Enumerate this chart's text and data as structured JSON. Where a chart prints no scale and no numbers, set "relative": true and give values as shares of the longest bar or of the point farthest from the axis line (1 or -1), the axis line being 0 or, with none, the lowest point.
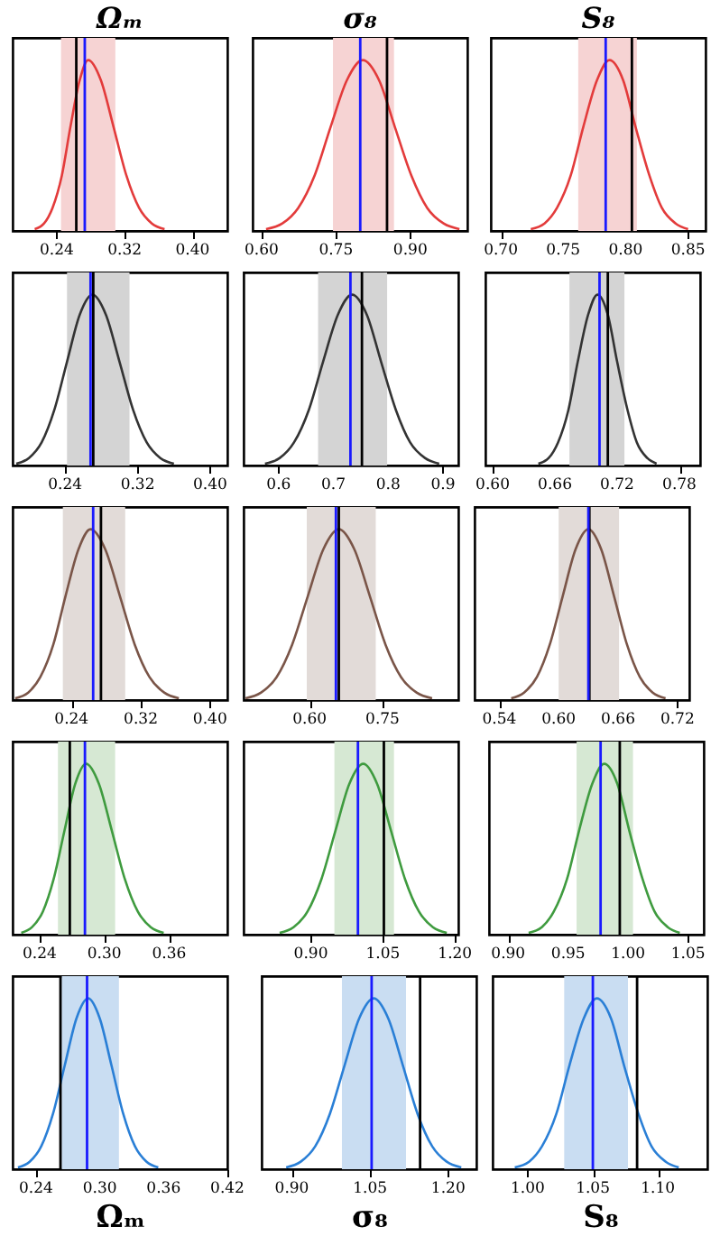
{
  "chart_data": [
    {
      "type": "line",
      "relative": true,
      "tick_labels": "x",
      "title": "Ωₘ",
      "x": [
        0.214,
        0.225,
        0.235,
        0.246,
        0.256,
        0.267,
        0.277,
        0.292,
        0.307,
        0.322,
        0.337,
        0.352,
        0.367
      ],
      "series": [
        {
          "color": "#e33b3b",
          "values": [
            0.011,
            0.044,
            0.135,
            0.325,
            0.607,
            0.882,
            1,
            0.882,
            0.607,
            0.325,
            0.135,
            0.044,
            0.011
          ]
        }
      ],
      "xlim": [
        0.188,
        0.441
      ],
      "xticks": [
        0.24,
        0.32,
        {
          "value": 0.4,
          "label": "0.40"
        }
      ],
      "bands": [
        {
          "axis": "x",
          "from": 0.245,
          "to": 0.309,
          "color": "#f6d3d3"
        }
      ],
      "ref_lines": [
        {
          "axis": "x",
          "value": 0.263,
          "color": "#000000"
        },
        {
          "axis": "x",
          "value": 0.273,
          "color": "#1a1aff"
        }
      ]
    },
    {
      "type": "line",
      "relative": true,
      "tick_labels": "x",
      "title": "σ₈",
      "x": [
        0.609,
        0.642,
        0.674,
        0.707,
        0.739,
        0.772,
        0.804,
        0.837,
        0.869,
        0.902,
        0.934,
        0.967,
        0.999
      ],
      "series": [
        {
          "color": "#e33b3b",
          "values": [
            0.011,
            0.044,
            0.135,
            0.325,
            0.607,
            0.882,
            1,
            0.882,
            0.607,
            0.325,
            0.135,
            0.044,
            0.011
          ]
        }
      ],
      "xlim": [
        0.582,
        1.015
      ],
      "xticks": [
        {
          "value": 0.6,
          "label": "0.60"
        },
        0.75,
        {
          "value": 0.9,
          "label": "0.90"
        }
      ],
      "bands": [
        {
          "axis": "x",
          "from": 0.744,
          "to": 0.867,
          "color": "#f6d3d3"
        }
      ],
      "ref_lines": [
        {
          "axis": "x",
          "value": 0.853,
          "color": "#000000"
        },
        {
          "axis": "x",
          "value": 0.799,
          "color": "#1a1aff"
        }
      ]
    },
    {
      "type": "line",
      "relative": true,
      "tick_labels": "x",
      "title": "S₈",
      "x": [
        0.724,
        0.735,
        0.745,
        0.756,
        0.766,
        0.777,
        0.787,
        0.798,
        0.808,
        0.819,
        0.829,
        0.84,
        0.85
      ],
      "series": [
        {
          "color": "#e33b3b",
          "values": [
            0.011,
            0.044,
            0.135,
            0.325,
            0.607,
            0.882,
            1,
            0.882,
            0.607,
            0.325,
            0.135,
            0.044,
            0.011
          ]
        }
      ],
      "xlim": [
        0.692,
        0.864
      ],
      "xticks": [
        {
          "value": 0.7,
          "label": "0.70"
        },
        0.75,
        {
          "value": 0.8,
          "label": "0.80"
        },
        0.85
      ],
      "bands": [
        {
          "axis": "x",
          "from": 0.762,
          "to": 0.809,
          "color": "#f6d3d3"
        }
      ],
      "ref_lines": [
        {
          "axis": "x",
          "value": 0.805,
          "color": "#000000"
        },
        {
          "axis": "x",
          "value": 0.784,
          "color": "#1a1aff"
        }
      ]
    },
    {
      "type": "line",
      "relative": true,
      "tick_labels": "x",
      "x": [
        0.186,
        0.2,
        0.214,
        0.228,
        0.242,
        0.256,
        0.27,
        0.285,
        0.3,
        0.315,
        0.33,
        0.345,
        0.36
      ],
      "series": [
        {
          "color": "#333333",
          "values": [
            0.011,
            0.044,
            0.135,
            0.325,
            0.607,
            0.882,
            1,
            0.882,
            0.607,
            0.325,
            0.135,
            0.044,
            0.011
          ]
        }
      ],
      "xlim": [
        0.182,
        0.419
      ],
      "xticks": [
        0.24,
        0.32,
        {
          "value": 0.4,
          "label": "0.40"
        }
      ],
      "bands": [
        {
          "axis": "x",
          "from": 0.242,
          "to": 0.311,
          "color": "#d4d4d4"
        }
      ],
      "ref_lines": [
        {
          "axis": "x",
          "value": 0.271,
          "color": "#000000"
        },
        {
          "axis": "x",
          "value": 0.268,
          "color": "#1a1aff"
        }
      ]
    },
    {
      "type": "line",
      "relative": true,
      "tick_labels": "x",
      "x": [
        0.575,
        0.602,
        0.628,
        0.655,
        0.681,
        0.708,
        0.734,
        0.761,
        0.787,
        0.814,
        0.84,
        0.867,
        0.893
      ],
      "series": [
        {
          "color": "#333333",
          "values": [
            0.011,
            0.044,
            0.135,
            0.325,
            0.607,
            0.882,
            1,
            0.882,
            0.607,
            0.325,
            0.135,
            0.044,
            0.011
          ]
        }
      ],
      "xlim": [
        0.536,
        0.928
      ],
      "xticks": [
        0.6,
        0.7,
        0.8,
        0.9
      ],
      "bands": [
        {
          "axis": "x",
          "from": 0.672,
          "to": 0.798,
          "color": "#d4d4d4"
        }
      ],
      "ref_lines": [
        {
          "axis": "x",
          "value": 0.752,
          "color": "#000000"
        },
        {
          "axis": "x",
          "value": 0.731,
          "color": "#1a1aff"
        }
      ]
    },
    {
      "type": "line",
      "relative": true,
      "tick_labels": "x",
      "x": [
        0.644,
        0.654,
        0.663,
        0.673,
        0.682,
        0.692,
        0.701,
        0.711,
        0.72,
        0.73,
        0.739,
        0.749,
        0.758
      ],
      "series": [
        {
          "color": "#333333",
          "values": [
            0.011,
            0.044,
            0.135,
            0.325,
            0.607,
            0.882,
            1,
            0.882,
            0.607,
            0.325,
            0.135,
            0.044,
            0.011
          ]
        }
      ],
      "xlim": [
        0.593,
        0.8
      ],
      "xticks": [
        {
          "value": 0.6,
          "label": "0.60"
        },
        0.66,
        0.72,
        0.78
      ],
      "bands": [
        {
          "axis": "x",
          "from": 0.674,
          "to": 0.727,
          "color": "#d4d4d4"
        }
      ],
      "ref_lines": [
        {
          "axis": "x",
          "value": 0.711,
          "color": "#000000"
        },
        {
          "axis": "x",
          "value": 0.703,
          "color": "#1a1aff"
        }
      ]
    },
    {
      "type": "line",
      "relative": true,
      "tick_labels": "x",
      "x": [
        0.175,
        0.19,
        0.204,
        0.219,
        0.233,
        0.248,
        0.262,
        0.279,
        0.296,
        0.313,
        0.33,
        0.347,
        0.364
      ],
      "series": [
        {
          "color": "#7a5548",
          "values": [
            0.011,
            0.044,
            0.135,
            0.325,
            0.607,
            0.882,
            1,
            0.882,
            0.607,
            0.325,
            0.135,
            0.044,
            0.011
          ]
        }
      ],
      "xlim": [
        0.172,
        0.42
      ],
      "xticks": [
        0.24,
        0.32,
        {
          "value": 0.4,
          "label": "0.40"
        }
      ],
      "bands": [
        {
          "axis": "x",
          "from": 0.23,
          "to": 0.302,
          "color": "#e2dbd8"
        }
      ],
      "ref_lines": [
        {
          "axis": "x",
          "value": 0.274,
          "color": "#000000"
        },
        {
          "axis": "x",
          "value": 0.265,
          "color": "#1a1aff"
        }
      ]
    },
    {
      "type": "line",
      "relative": true,
      "tick_labels": "x",
      "x": [
        0.468,
        0.5,
        0.532,
        0.564,
        0.596,
        0.628,
        0.66,
        0.692,
        0.724,
        0.756,
        0.788,
        0.82,
        0.852
      ],
      "series": [
        {
          "color": "#7a5548",
          "values": [
            0.011,
            0.044,
            0.135,
            0.325,
            0.607,
            0.882,
            1,
            0.882,
            0.607,
            0.325,
            0.135,
            0.044,
            0.011
          ]
        }
      ],
      "xlim": [
        0.464,
        0.906
      ],
      "xticks": [
        {
          "value": 0.6,
          "label": "0.60"
        },
        0.75
      ],
      "bands": [
        {
          "axis": "x",
          "from": 0.594,
          "to": 0.736,
          "color": "#e2dbd8"
        }
      ],
      "ref_lines": [
        {
          "axis": "x",
          "value": 0.66,
          "color": "#000000"
        },
        {
          "axis": "x",
          "value": 0.654,
          "color": "#1a1aff"
        }
      ]
    },
    {
      "type": "line",
      "relative": true,
      "tick_labels": "x",
      "x": [
        0.552,
        0.565,
        0.578,
        0.591,
        0.604,
        0.617,
        0.63,
        0.643,
        0.656,
        0.669,
        0.682,
        0.695,
        0.708
      ],
      "series": [
        {
          "color": "#7a5548",
          "values": [
            0.011,
            0.044,
            0.135,
            0.325,
            0.607,
            0.882,
            1,
            0.882,
            0.607,
            0.325,
            0.135,
            0.044,
            0.011
          ]
        }
      ],
      "xlim": [
        0.515,
        0.732
      ],
      "xticks": [
        0.54,
        {
          "value": 0.6,
          "label": "0.60"
        },
        0.66,
        0.72
      ],
      "bands": [
        {
          "axis": "x",
          "from": 0.6,
          "to": 0.661,
          "color": "#e2dbd8"
        }
      ],
      "ref_lines": [
        {
          "axis": "x",
          "value": 0.631,
          "color": "#000000"
        },
        {
          "axis": "x",
          "value": 0.63,
          "color": "#1a1aff"
        }
      ]
    },
    {
      "type": "line",
      "relative": true,
      "tick_labels": "x",
      "x": [
        0.223,
        0.233,
        0.243,
        0.253,
        0.263,
        0.273,
        0.283,
        0.295,
        0.307,
        0.319,
        0.331,
        0.343,
        0.355
      ],
      "series": [
        {
          "color": "#3f9b3f",
          "values": [
            0.011,
            0.044,
            0.135,
            0.325,
            0.607,
            0.882,
            1,
            0.882,
            0.607,
            0.325,
            0.135,
            0.044,
            0.011
          ]
        }
      ],
      "xlim": [
        0.215,
        0.414
      ],
      "xticks": [
        0.24,
        {
          "value": 0.3,
          "label": "0.30"
        },
        0.36
      ],
      "bands": [
        {
          "axis": "x",
          "from": 0.257,
          "to": 0.31,
          "color": "#d6e8d3"
        }
      ],
      "ref_lines": [
        {
          "axis": "x",
          "value": 0.268,
          "color": "#000000"
        },
        {
          "axis": "x",
          "value": 0.282,
          "color": "#1a1aff"
        }
      ]
    },
    {
      "type": "line",
      "relative": true,
      "tick_labels": "x",
      "x": [
        0.835,
        0.864,
        0.893,
        0.922,
        0.951,
        0.98,
        1.009,
        1.038,
        1.067,
        1.096,
        1.125,
        1.154,
        1.183
      ],
      "series": [
        {
          "color": "#3f9b3f",
          "values": [
            0.011,
            0.044,
            0.135,
            0.325,
            0.607,
            0.882,
            1,
            0.882,
            0.607,
            0.325,
            0.135,
            0.044,
            0.011
          ]
        }
      ],
      "xlim": [
        0.76,
        1.207
      ],
      "xticks": [
        {
          "value": 0.9,
          "label": "0.90"
        },
        1.05,
        {
          "value": 1.2,
          "label": "1.20"
        }
      ],
      "bands": [
        {
          "axis": "x",
          "from": 0.949,
          "to": 1.073,
          "color": "#d6e8d3"
        }
      ],
      "ref_lines": [
        {
          "axis": "x",
          "value": 1.052,
          "color": "#000000"
        },
        {
          "axis": "x",
          "value": 0.998,
          "color": "#1a1aff"
        }
      ]
    },
    {
      "type": "line",
      "relative": true,
      "tick_labels": "x",
      "x": [
        0.917,
        0.928,
        0.938,
        0.949,
        0.959,
        0.97,
        0.98,
        0.991,
        1.001,
        1.012,
        1.022,
        1.033,
        1.043
      ],
      "series": [
        {
          "color": "#3f9b3f",
          "values": [
            0.011,
            0.044,
            0.135,
            0.325,
            0.607,
            0.882,
            1,
            0.882,
            0.607,
            0.325,
            0.135,
            0.044,
            0.011
          ]
        }
      ],
      "xlim": [
        0.884,
        1.063
      ],
      "xticks": [
        {
          "value": 0.9,
          "label": "0.90"
        },
        0.95,
        {
          "value": 1.0,
          "label": "1.00"
        },
        1.05
      ],
      "bands": [
        {
          "axis": "x",
          "from": 0.957,
          "to": 1.004,
          "color": "#d6e8d3"
        }
      ],
      "ref_lines": [
        {
          "axis": "x",
          "value": 0.993,
          "color": "#000000"
        },
        {
          "axis": "x",
          "value": 0.977,
          "color": "#1a1aff"
        }
      ]
    },
    {
      "type": "line",
      "relative": true,
      "tick_labels": "x",
      "xlabel": "Ωₘ",
      "x": [
        0.223,
        0.234,
        0.245,
        0.256,
        0.267,
        0.278,
        0.289,
        0.3,
        0.311,
        0.322,
        0.333,
        0.344,
        0.355
      ],
      "series": [
        {
          "color": "#2a7fd6",
          "values": [
            0.011,
            0.044,
            0.135,
            0.325,
            0.607,
            0.882,
            1,
            0.882,
            0.607,
            0.325,
            0.135,
            0.044,
            0.011
          ]
        }
      ],
      "xlim": [
        0.218,
        0.42
      ],
      "xticks": [
        0.24,
        {
          "value": 0.3,
          "label": "0.30"
        },
        0.36,
        0.42
      ],
      "bands": [
        {
          "axis": "x",
          "from": 0.264,
          "to": 0.318,
          "color": "#c9ddf2"
        }
      ],
      "ref_lines": [
        {
          "axis": "x",
          "value": 0.263,
          "color": "#000000"
        },
        {
          "axis": "x",
          "value": 0.288,
          "color": "#1a1aff"
        }
      ]
    },
    {
      "type": "line",
      "relative": true,
      "tick_labels": "x",
      "xlabel": "σ₈",
      "x": [
        0.889,
        0.917,
        0.945,
        0.973,
        1.001,
        1.029,
        1.057,
        1.085,
        1.113,
        1.141,
        1.169,
        1.197,
        1.225
      ],
      "series": [
        {
          "color": "#2a7fd6",
          "values": [
            0.011,
            0.044,
            0.135,
            0.325,
            0.607,
            0.882,
            1,
            0.882,
            0.607,
            0.325,
            0.135,
            0.044,
            0.011
          ]
        }
      ],
      "xlim": [
        0.842,
        1.254
      ],
      "xticks": [
        {
          "value": 0.9,
          "label": "0.90"
        },
        1.05,
        {
          "value": 1.2,
          "label": "1.20"
        }
      ],
      "bands": [
        {
          "axis": "x",
          "from": 0.996,
          "to": 1.119,
          "color": "#c9ddf2"
        }
      ],
      "ref_lines": [
        {
          "axis": "x",
          "value": 1.146,
          "color": "#000000"
        },
        {
          "axis": "x",
          "value": 1.053,
          "color": "#1a1aff"
        }
      ]
    },
    {
      "type": "line",
      "relative": true,
      "tick_labels": "x",
      "xlabel": "S₈",
      "x": [
        0.99,
        1.001,
        1.011,
        1.022,
        1.032,
        1.043,
        1.053,
        1.064,
        1.074,
        1.085,
        1.095,
        1.106,
        1.116
      ],
      "series": [
        {
          "color": "#2a7fd6",
          "values": [
            0.011,
            0.044,
            0.135,
            0.325,
            0.607,
            0.882,
            1,
            0.882,
            0.607,
            0.325,
            0.135,
            0.044,
            0.011
          ]
        }
      ],
      "xlim": [
        0.973,
        1.138
      ],
      "xticks": [
        {
          "value": 1.0,
          "label": "1.00"
        },
        1.05,
        {
          "value": 1.1,
          "label": "1.10"
        }
      ],
      "bands": [
        {
          "axis": "x",
          "from": 1.028,
          "to": 1.077,
          "color": "#c9ddf2"
        }
      ],
      "ref_lines": [
        {
          "axis": "x",
          "value": 1.084,
          "color": "#000000"
        },
        {
          "axis": "x",
          "value": 1.05,
          "color": "#1a1aff"
        }
      ]
    }
  ]
}
